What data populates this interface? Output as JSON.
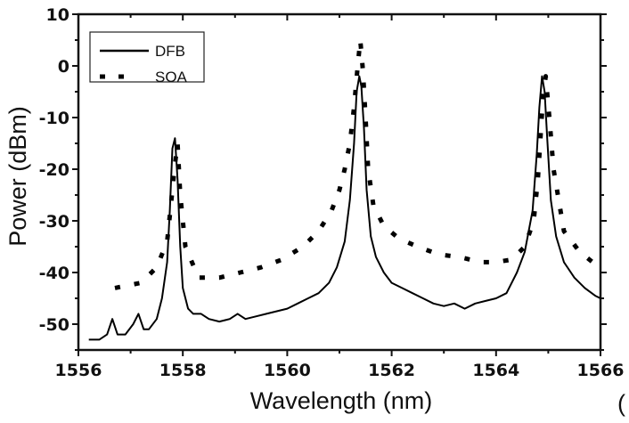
{
  "chart_data": {
    "type": "line",
    "title": "",
    "xlabel": "Wavelength (nm)",
    "ylabel": "Power (dBm)",
    "xlim": [
      1556,
      1566
    ],
    "ylim": [
      -55,
      10
    ],
    "xticks": [
      1556,
      1558,
      1560,
      1562,
      1564,
      1566
    ],
    "yticks": [
      10,
      0,
      -10,
      -20,
      -30,
      -40,
      -50
    ],
    "xtick_labels": [
      "1556",
      "1558",
      "1560",
      "1562",
      "1564",
      "1566"
    ],
    "ytick_labels": [
      "10",
      "0",
      "-10",
      "-20",
      "-30",
      "-40",
      "-50"
    ],
    "grid": false,
    "legend_position": "top-left",
    "annotation": "(",
    "series": [
      {
        "name": "DFB",
        "style": "solid",
        "x": [
          1556.2,
          1556.4,
          1556.55,
          1556.65,
          1556.75,
          1556.9,
          1557.05,
          1557.15,
          1557.25,
          1557.35,
          1557.5,
          1557.6,
          1557.7,
          1557.75,
          1557.8,
          1557.85,
          1557.9,
          1557.95,
          1558.0,
          1558.1,
          1558.2,
          1558.35,
          1558.5,
          1558.7,
          1558.9,
          1559.05,
          1559.2,
          1559.4,
          1559.6,
          1559.8,
          1560.0,
          1560.2,
          1560.4,
          1560.6,
          1560.8,
          1560.95,
          1561.1,
          1561.2,
          1561.28,
          1561.33,
          1561.38,
          1561.42,
          1561.47,
          1561.52,
          1561.6,
          1561.7,
          1561.85,
          1562.0,
          1562.2,
          1562.4,
          1562.6,
          1562.8,
          1563.0,
          1563.2,
          1563.4,
          1563.6,
          1563.8,
          1564.0,
          1564.2,
          1564.4,
          1564.55,
          1564.7,
          1564.78,
          1564.83,
          1564.88,
          1564.93,
          1564.98,
          1565.05,
          1565.15,
          1565.3,
          1565.5,
          1565.7,
          1565.9,
          1566.0
        ],
        "y": [
          -53,
          -53,
          -52,
          -49,
          -52,
          -52,
          -50,
          -48,
          -51,
          -51,
          -49,
          -45,
          -38,
          -28,
          -16,
          -14,
          -22,
          -35,
          -43,
          -47,
          -48,
          -48,
          -49,
          -49.5,
          -49,
          -48,
          -49,
          -48.5,
          -48,
          -47.5,
          -47,
          -46,
          -45,
          -44,
          -42,
          -39,
          -34,
          -26,
          -15,
          -5,
          -2,
          -4,
          -12,
          -24,
          -33,
          -37,
          -40,
          -42,
          -43,
          -44,
          -45,
          -46,
          -46.5,
          -46,
          -47,
          -46,
          -45.5,
          -45,
          -44,
          -40,
          -36,
          -28,
          -17,
          -8,
          -2,
          -5,
          -14,
          -26,
          -33,
          -38,
          -41,
          -43,
          -44.5,
          -45
        ]
      },
      {
        "name": "SOA",
        "style": "dashed",
        "x": [
          1556.7,
          1557.2,
          1557.5,
          1557.7,
          1557.75,
          1557.8,
          1557.85,
          1557.9,
          1557.95,
          1558.05,
          1558.3,
          1558.7,
          1559.1,
          1559.5,
          1559.9,
          1560.3,
          1560.6,
          1560.85,
          1561.0,
          1561.1,
          1561.2,
          1561.28,
          1561.35,
          1561.4,
          1561.45,
          1561.5,
          1561.55,
          1561.65,
          1561.85,
          1562.15,
          1562.5,
          1562.9,
          1563.3,
          1563.7,
          1564.0,
          1564.3,
          1564.55,
          1564.72,
          1564.8,
          1564.85,
          1564.9,
          1564.95,
          1565.02,
          1565.1,
          1565.3,
          1565.6,
          1565.85
        ],
        "y": [
          -43,
          -42,
          -39,
          -34,
          -29,
          -24,
          -19,
          -15,
          -25,
          -35,
          -41,
          -41,
          -40,
          -39,
          -37.5,
          -35,
          -32,
          -28,
          -24,
          -20,
          -15,
          -8,
          0,
          5,
          -1,
          -10,
          -20,
          -27,
          -31,
          -33.5,
          -35,
          -36.5,
          -37,
          -38,
          -38,
          -37.5,
          -35,
          -30,
          -22,
          -14,
          -6,
          -2,
          -10,
          -20,
          -32,
          -36,
          -38
        ]
      }
    ]
  }
}
